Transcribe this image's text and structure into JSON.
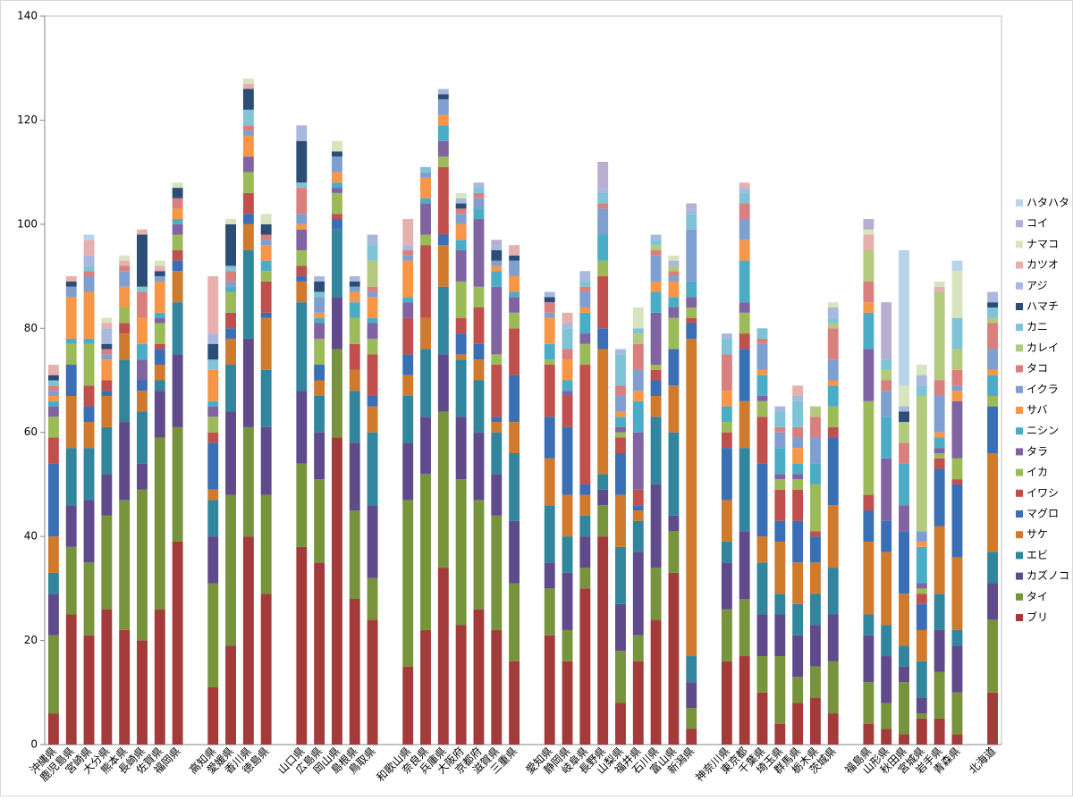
{
  "chart_data": {
    "type": "stacked_bar",
    "categories": [
      "沖縄県",
      "鹿児島県",
      "宮崎県",
      "大分県",
      "熊本県",
      "長崎県",
      "佐賀県",
      "福岡県",
      null,
      "高知県",
      "愛媛県",
      "香川県",
      "徳島県",
      null,
      "山口県",
      "広島県",
      "岡山県",
      "島根県",
      "鳥取県",
      null,
      "和歌山県",
      "奈良県",
      "兵庫県",
      "大阪府",
      "京都府",
      "滋賀県",
      "三重県",
      null,
      "愛知県",
      "静岡県",
      "岐阜県",
      "長野県",
      "山梨県",
      "福井県",
      "石川県",
      "富山県",
      "新潟県",
      null,
      "神奈川県",
      "東京都",
      "千葉県",
      "埼玉県",
      "群馬県",
      "栃木県",
      "茨城県",
      null,
      "福島県",
      "山形県",
      "秋田県",
      "宮城県",
      "岩手県",
      "青森県",
      null,
      "北海道"
    ],
    "ylim": [
      0,
      140
    ],
    "yticks": [
      0,
      20,
      40,
      60,
      80,
      100,
      120,
      140
    ],
    "grid": false,
    "legend": "right",
    "series": [
      {
        "name": "ブリ",
        "color": "#a33b3b",
        "values": [
          6,
          25,
          21,
          26,
          22,
          20,
          26,
          39,
          null,
          11,
          19,
          40,
          29,
          null,
          38,
          35,
          59,
          28,
          24,
          null,
          15,
          22,
          34,
          23,
          26,
          22,
          16,
          null,
          21,
          16,
          30,
          40,
          8,
          16,
          24,
          33,
          3,
          null,
          16,
          17,
          10,
          4,
          8,
          9,
          6,
          null,
          4,
          3,
          2,
          5,
          5,
          2,
          null,
          10
        ]
      },
      {
        "name": "タイ",
        "color": "#77933c",
        "values": [
          15,
          13,
          14,
          18,
          25,
          29,
          33,
          22,
          null,
          20,
          29,
          21,
          19,
          null,
          16,
          16,
          17,
          17,
          8,
          null,
          32,
          30,
          30,
          28,
          21,
          22,
          15,
          null,
          9,
          6,
          4,
          6,
          10,
          5,
          10,
          8,
          4,
          null,
          10,
          11,
          7,
          13,
          5,
          6,
          10,
          null,
          8,
          5,
          10,
          1,
          9,
          8,
          null,
          14
        ]
      },
      {
        "name": "カズノコ",
        "color": "#5f4a8b",
        "values": [
          8,
          8,
          12,
          8,
          15,
          5,
          9,
          14,
          null,
          9,
          16,
          17,
          13,
          null,
          14,
          9,
          10,
          13,
          14,
          null,
          11,
          11,
          11,
          12,
          13,
          8,
          12,
          null,
          5,
          11,
          6,
          3,
          9,
          16,
          16,
          3,
          5,
          null,
          9,
          13,
          8,
          8,
          8,
          8,
          9,
          null,
          9,
          9,
          3,
          3,
          8,
          9,
          null,
          7
        ]
      },
      {
        "name": "エビ",
        "color": "#31859c",
        "values": [
          4,
          11,
          10,
          9,
          12,
          10,
          2,
          10,
          null,
          7,
          9,
          17,
          11,
          null,
          17,
          7,
          13,
          10,
          14,
          null,
          9,
          13,
          13,
          11,
          10,
          8,
          13,
          null,
          11,
          7,
          4,
          3,
          11,
          6,
          13,
          16,
          5,
          null,
          4,
          16,
          10,
          4,
          6,
          6,
          9,
          null,
          4,
          6,
          4,
          7,
          7,
          3,
          null,
          6
        ]
      },
      {
        "name": "サケ",
        "color": "#d07a2e",
        "values": [
          7,
          10,
          5,
          6,
          5,
          4,
          3,
          6,
          null,
          2,
          5,
          5,
          10,
          null,
          4,
          3,
          0,
          4,
          5,
          null,
          4,
          6,
          8,
          1,
          4,
          2,
          6,
          null,
          9,
          8,
          4,
          24,
          10,
          2,
          4,
          9,
          61,
          null,
          8,
          9,
          5,
          10,
          8,
          6,
          12,
          null,
          14,
          14,
          10,
          6,
          13,
          14,
          null,
          19
        ]
      },
      {
        "name": "マグロ",
        "color": "#3a6eb5",
        "values": [
          14,
          6,
          3,
          1,
          0,
          2,
          3,
          2,
          null,
          9,
          2,
          2,
          1,
          null,
          1,
          3,
          2,
          0,
          2,
          null,
          4,
          0,
          2,
          4,
          3,
          1,
          9,
          null,
          8,
          13,
          2,
          4,
          8,
          1,
          3,
          7,
          3,
          null,
          10,
          10,
          14,
          4,
          8,
          5,
          13,
          null,
          6,
          6,
          12,
          5,
          11,
          14,
          null,
          9
        ]
      },
      {
        "name": "イワシ",
        "color": "#c0504d",
        "values": [
          5,
          0,
          4,
          2,
          2,
          0,
          1,
          2,
          null,
          2,
          3,
          4,
          6,
          null,
          2,
          0,
          1,
          5,
          8,
          null,
          7,
          14,
          13,
          3,
          7,
          10,
          9,
          null,
          10,
          6,
          23,
          10,
          3,
          3,
          2,
          0,
          1,
          null,
          3,
          3,
          9,
          6,
          6,
          1,
          2,
          null,
          3,
          0,
          0,
          2,
          2,
          1,
          null,
          0
        ]
      },
      {
        "name": "イカ",
        "color": "#9bbb59",
        "values": [
          4,
          4,
          8,
          0,
          3,
          0,
          4,
          3,
          null,
          3,
          4,
          4,
          2,
          null,
          3,
          5,
          4,
          5,
          3,
          null,
          0,
          2,
          2,
          7,
          4,
          2,
          3,
          null,
          1,
          0,
          4,
          3,
          1,
          0,
          1,
          6,
          2,
          null,
          2,
          4,
          3,
          2,
          2,
          9,
          4,
          null,
          18,
          0,
          0,
          1,
          1,
          4,
          null,
          2
        ]
      },
      {
        "name": "タラ",
        "color": "#8064a2",
        "values": [
          2,
          0,
          0,
          0,
          0,
          4,
          1,
          2,
          null,
          2,
          0,
          3,
          0,
          null,
          4,
          3,
          1,
          0,
          3,
          null,
          3,
          6,
          3,
          6,
          13,
          13,
          3,
          null,
          0,
          1,
          2,
          0,
          1,
          11,
          10,
          2,
          2,
          null,
          0,
          2,
          1,
          1,
          1,
          0,
          0,
          null,
          10,
          12,
          5,
          1,
          1,
          11,
          null,
          0
        ]
      },
      {
        "name": "ニシン",
        "color": "#4bacc6",
        "values": [
          1,
          1,
          1,
          0,
          0,
          3,
          1,
          1,
          null,
          1,
          1,
          0,
          2,
          null,
          0,
          1,
          1,
          3,
          1,
          null,
          1,
          1,
          3,
          2,
          2,
          3,
          1,
          null,
          3,
          2,
          4,
          5,
          2,
          6,
          4,
          2,
          3,
          null,
          3,
          8,
          4,
          5,
          2,
          4,
          4,
          null,
          7,
          8,
          8,
          7,
          2,
          0,
          null,
          4
        ]
      },
      {
        "name": "サバ",
        "color": "#f79646",
        "values": [
          1,
          8,
          9,
          4,
          4,
          5,
          6,
          2,
          null,
          6,
          0,
          4,
          3,
          null,
          1,
          1,
          2,
          2,
          4,
          null,
          7,
          4,
          2,
          3,
          0,
          1,
          3,
          null,
          5,
          4,
          1,
          0,
          1,
          2,
          2,
          3,
          0,
          null,
          3,
          4,
          1,
          0,
          3,
          0,
          1,
          null,
          2,
          0,
          0,
          1,
          1,
          2,
          null,
          1
        ]
      },
      {
        "name": "イクラ",
        "color": "#7f9fd0",
        "values": [
          1,
          2,
          3,
          1,
          3,
          0,
          1,
          0,
          null,
          0,
          1,
          1,
          1,
          null,
          2,
          3,
          3,
          1,
          1,
          null,
          1,
          1,
          3,
          2,
          2,
          1,
          3,
          null,
          1,
          0,
          3,
          5,
          3,
          4,
          5,
          1,
          10,
          null,
          0,
          4,
          5,
          3,
          2,
          5,
          4,
          null,
          0,
          5,
          0,
          2,
          7,
          1,
          null,
          4
        ]
      },
      {
        "name": "タコ",
        "color": "#d9807e",
        "values": [
          1,
          0,
          1,
          1,
          1,
          5,
          0,
          2,
          null,
          0,
          2,
          1,
          1,
          null,
          5,
          0,
          0,
          0,
          1,
          null,
          1,
          0,
          0,
          1,
          1,
          0,
          0,
          null,
          2,
          2,
          1,
          1,
          2,
          5,
          1,
          1,
          0,
          null,
          7,
          3,
          1,
          1,
          2,
          4,
          6,
          null,
          4,
          2,
          4,
          0,
          3,
          3,
          null,
          5
        ]
      },
      {
        "name": "カレイ",
        "color": "#b2c97e",
        "values": [
          0,
          0,
          0,
          0,
          0,
          0,
          0,
          0,
          null,
          0,
          0,
          0,
          0,
          null,
          0,
          0,
          0,
          0,
          5,
          null,
          0,
          0,
          0,
          0,
          0,
          0,
          0,
          null,
          0,
          0,
          0,
          0,
          0,
          2,
          1,
          1,
          0,
          null,
          0,
          0,
          0,
          0,
          0,
          2,
          1,
          null,
          6,
          2,
          4,
          26,
          17,
          4,
          null,
          1
        ]
      },
      {
        "name": "カニ",
        "color": "#7fc3d6",
        "values": [
          1,
          0,
          1,
          0,
          0,
          1,
          0,
          0,
          null,
          2,
          1,
          3,
          0,
          null,
          1,
          1,
          0,
          0,
          3,
          null,
          0,
          1,
          0,
          0,
          1,
          0,
          0,
          null,
          0,
          4,
          1,
          2,
          6,
          1,
          1,
          0,
          3,
          null,
          3,
          2,
          2,
          3,
          5,
          0,
          1,
          null,
          0,
          2,
          0,
          2,
          0,
          6,
          null,
          2
        ]
      },
      {
        "name": "ハマチ",
        "color": "#2c4d75",
        "values": [
          1,
          1,
          0,
          1,
          0,
          10,
          1,
          2,
          null,
          3,
          8,
          4,
          2,
          null,
          8,
          2,
          1,
          1,
          0,
          null,
          0,
          0,
          1,
          1,
          0,
          2,
          1,
          null,
          1,
          0,
          0,
          0,
          0,
          0,
          0,
          0,
          0,
          null,
          0,
          0,
          0,
          0,
          0,
          0,
          0,
          null,
          0,
          0,
          2,
          0,
          0,
          0,
          null,
          1
        ]
      },
      {
        "name": "アジ",
        "color": "#a9b8dd",
        "values": [
          0,
          0,
          2,
          3,
          0,
          0,
          0,
          0,
          null,
          2,
          0,
          0,
          0,
          null,
          3,
          1,
          0,
          1,
          2,
          null,
          1,
          0,
          1,
          1,
          1,
          1,
          0,
          null,
          1,
          1,
          2,
          1,
          1,
          0,
          1,
          1,
          1,
          null,
          1,
          1,
          0,
          1,
          1,
          0,
          2,
          null,
          0,
          0,
          1,
          2,
          0,
          0,
          null,
          2
        ]
      },
      {
        "name": "カツオ",
        "color": "#e6b0af",
        "values": [
          2,
          1,
          3,
          1,
          1,
          1,
          1,
          0,
          null,
          11,
          0,
          1,
          0,
          null,
          0,
          0,
          0,
          0,
          0,
          null,
          5,
          0,
          0,
          0,
          0,
          0,
          2,
          null,
          0,
          2,
          0,
          0,
          0,
          0,
          0,
          0,
          0,
          null,
          0,
          1,
          0,
          0,
          2,
          0,
          0,
          null,
          3,
          0,
          0,
          0,
          1,
          0,
          null,
          0
        ]
      },
      {
        "name": "ナマコ",
        "color": "#d7e4bd",
        "values": [
          0,
          0,
          0,
          1,
          1,
          0,
          1,
          1,
          null,
          0,
          1,
          1,
          2,
          null,
          0,
          0,
          2,
          0,
          0,
          null,
          0,
          0,
          0,
          1,
          0,
          0,
          0,
          null,
          0,
          0,
          0,
          0,
          0,
          4,
          0,
          1,
          0,
          null,
          0,
          0,
          0,
          0,
          0,
          0,
          1,
          null,
          1,
          0,
          4,
          2,
          1,
          9,
          null,
          0
        ]
      },
      {
        "name": "コイ",
        "color": "#b8aed0",
        "values": [
          0,
          0,
          0,
          0,
          0,
          0,
          0,
          0,
          null,
          0,
          0,
          0,
          0,
          null,
          0,
          0,
          0,
          0,
          0,
          null,
          0,
          0,
          0,
          0,
          0,
          1,
          0,
          null,
          0,
          0,
          0,
          5,
          0,
          0,
          0,
          0,
          1,
          null,
          0,
          0,
          0,
          0,
          0,
          0,
          0,
          null,
          2,
          11,
          0,
          0,
          0,
          0,
          null,
          0
        ]
      },
      {
        "name": "ハタハタ",
        "color": "#b7d4ea",
        "values": [
          0,
          0,
          1,
          0,
          0,
          0,
          0,
          0,
          null,
          0,
          0,
          0,
          0,
          null,
          0,
          0,
          0,
          0,
          0,
          null,
          0,
          0,
          0,
          0,
          0,
          0,
          0,
          null,
          0,
          0,
          0,
          0,
          0,
          0,
          0,
          0,
          0,
          null,
          0,
          0,
          0,
          0,
          0,
          0,
          0,
          null,
          0,
          0,
          26,
          0,
          0,
          2,
          null,
          0
        ]
      }
    ]
  }
}
